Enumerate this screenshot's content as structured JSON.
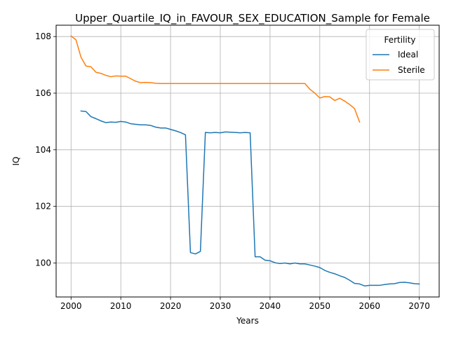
{
  "chart_data": {
    "type": "line",
    "title": "Upper_Quartile_IQ_in_FAVOUR_SEX_EDUCATION_Sample for Female",
    "xlabel": "Years",
    "ylabel": "IQ",
    "xlim": [
      1997,
      2074
    ],
    "ylim": [
      98.8,
      108.4
    ],
    "xticks": [
      2000,
      2010,
      2020,
      2030,
      2040,
      2050,
      2060,
      2070
    ],
    "yticks": [
      100,
      102,
      104,
      106,
      108
    ],
    "grid": true,
    "legend": {
      "title": "Fertility",
      "placement": "top-right"
    },
    "series": [
      {
        "name": "Ideal",
        "color": "#1f77b4",
        "x": [
          2002,
          2003,
          2004,
          2005,
          2006,
          2007,
          2008,
          2009,
          2010,
          2011,
          2012,
          2013,
          2014,
          2015,
          2016,
          2017,
          2018,
          2019,
          2020,
          2021,
          2022,
          2023,
          2024,
          2025,
          2026,
          2027,
          2028,
          2029,
          2030,
          2031,
          2032,
          2033,
          2034,
          2035,
          2036,
          2037,
          2038,
          2039,
          2040,
          2041,
          2042,
          2043,
          2044,
          2045,
          2046,
          2047,
          2048,
          2049,
          2050,
          2051,
          2052,
          2053,
          2054,
          2055,
          2056,
          2057,
          2058,
          2059,
          2060,
          2061,
          2062,
          2063,
          2064,
          2065,
          2066,
          2067,
          2068,
          2069,
          2070
        ],
        "y": [
          105.37,
          105.35,
          105.17,
          105.1,
          105.02,
          104.96,
          104.98,
          104.97,
          105.0,
          104.98,
          104.92,
          104.9,
          104.88,
          104.88,
          104.86,
          104.8,
          104.77,
          104.77,
          104.72,
          104.67,
          104.61,
          104.53,
          100.37,
          100.32,
          100.41,
          104.61,
          104.6,
          104.61,
          104.6,
          104.63,
          104.62,
          104.61,
          104.6,
          104.61,
          104.6,
          100.22,
          100.22,
          100.1,
          100.08,
          100.01,
          99.98,
          100.0,
          99.97,
          100.0,
          99.97,
          99.97,
          99.93,
          99.89,
          99.84,
          99.74,
          99.67,
          99.62,
          99.55,
          99.49,
          99.39,
          99.28,
          99.26,
          99.19,
          99.21,
          99.21,
          99.21,
          99.24,
          99.26,
          99.27,
          99.31,
          99.32,
          99.3,
          99.27,
          99.26
        ]
      },
      {
        "name": "Sterile",
        "color": "#ff7f0e",
        "x": [
          2000,
          2001,
          2002,
          2003,
          2004,
          2005,
          2006,
          2007,
          2008,
          2009,
          2010,
          2011,
          2012,
          2013,
          2014,
          2015,
          2016,
          2017,
          2018,
          2019,
          2020,
          2021,
          2022,
          2023,
          2024,
          2025,
          2026,
          2027,
          2028,
          2029,
          2030,
          2031,
          2032,
          2033,
          2034,
          2035,
          2036,
          2037,
          2038,
          2039,
          2040,
          2041,
          2042,
          2043,
          2044,
          2045,
          2046,
          2047,
          2048,
          2049,
          2050,
          2051,
          2052,
          2053,
          2054,
          2055,
          2056,
          2057,
          2058
        ],
        "y": [
          108.02,
          107.88,
          107.27,
          106.96,
          106.93,
          106.74,
          106.7,
          106.63,
          106.58,
          106.61,
          106.6,
          106.6,
          106.51,
          106.42,
          106.37,
          106.38,
          106.37,
          106.35,
          106.34,
          106.34,
          106.34,
          106.34,
          106.34,
          106.34,
          106.34,
          106.34,
          106.34,
          106.34,
          106.34,
          106.34,
          106.34,
          106.34,
          106.34,
          106.34,
          106.34,
          106.34,
          106.34,
          106.34,
          106.34,
          106.34,
          106.34,
          106.34,
          106.34,
          106.34,
          106.34,
          106.34,
          106.34,
          106.34,
          106.14,
          106.0,
          105.83,
          105.88,
          105.87,
          105.74,
          105.82,
          105.72,
          105.6,
          105.45,
          104.98
        ]
      }
    ]
  }
}
